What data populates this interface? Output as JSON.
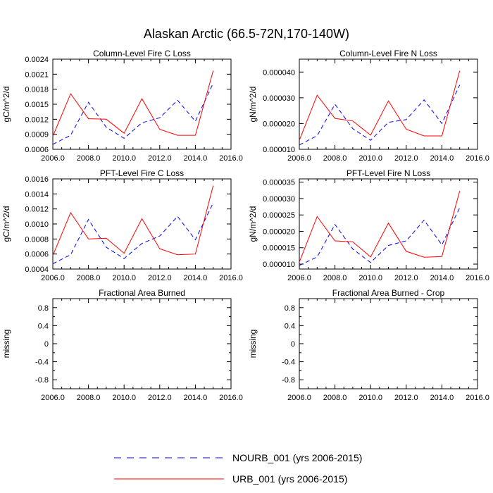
{
  "figure": {
    "title": "Alaskan Arctic (66.5-72N,170-140W)",
    "colors": {
      "nourb": "#0000ff",
      "urb": "#ff0000",
      "axis": "#000000"
    }
  },
  "legend": {
    "placement": "bottom-center",
    "items": [
      {
        "label": "NOURB_001 (yrs 2006-2015)",
        "style": "dashed",
        "color": "#0000ff"
      },
      {
        "label": "URB_001 (yrs 2006-2015)",
        "style": "solid",
        "color": "#ff0000"
      }
    ]
  },
  "chart_data": [
    {
      "type": "line",
      "title": "Column-Level Fire C Loss",
      "ylabel": "gC/m^2/d",
      "xlabel": "",
      "xlim": [
        2006,
        2016
      ],
      "ylim": [
        0.0006,
        0.0024
      ],
      "xticks": [
        2006,
        2008,
        2010,
        2012,
        2014,
        2016
      ],
      "xtick_labels": [
        "2006.0",
        "2008.0",
        "2010.0",
        "2012.0",
        "2014.0",
        "2016.0"
      ],
      "yticks": [
        0.0006,
        0.0009,
        0.0012,
        0.0015,
        0.0018,
        0.0021,
        0.0024
      ],
      "ytick_labels": [
        "0.0006",
        "0.0009",
        "0.0012",
        "0.0015",
        "0.0018",
        "0.0021",
        "0.0024"
      ],
      "x": [
        2006,
        2007,
        2008,
        2009,
        2010,
        2011,
        2012,
        2013,
        2014,
        2015
      ],
      "series": [
        {
          "name": "NOURB_001",
          "style": "dashed",
          "values": [
            0.0007,
            0.00088,
            0.00154,
            0.00104,
            0.00082,
            0.00113,
            0.00123,
            0.00158,
            0.00116,
            0.00192
          ]
        },
        {
          "name": "URB_001",
          "style": "solid",
          "values": [
            0.00086,
            0.00171,
            0.00121,
            0.0012,
            0.00092,
            0.00161,
            0.001,
            0.00088,
            0.00088,
            0.00217
          ]
        }
      ]
    },
    {
      "type": "line",
      "title": "Column-Level Fire N Loss",
      "ylabel": "gN/m^2/d",
      "xlabel": "",
      "xlim": [
        2006,
        2016
      ],
      "ylim": [
        1e-05,
        4.5e-05
      ],
      "xticks": [
        2006,
        2008,
        2010,
        2012,
        2014,
        2016
      ],
      "xtick_labels": [
        "2006.0",
        "2008.0",
        "2010.0",
        "2012.0",
        "2014.0",
        "2016.0"
      ],
      "yticks": [
        1e-05,
        2e-05,
        3e-05,
        4e-05
      ],
      "ytick_labels": [
        "0.000010",
        "0.000020",
        "0.000030",
        "0.000040"
      ],
      "x": [
        2006,
        2007,
        2008,
        2009,
        2010,
        2011,
        2012,
        2013,
        2014,
        2015
      ],
      "series": [
        {
          "name": "NOURB_001",
          "style": "dashed",
          "values": [
            1.17e-05,
            1.53e-05,
            2.75e-05,
            1.8e-05,
            1.35e-05,
            2.05e-05,
            2.15e-05,
            2.92e-05,
            2e-05,
            3.5e-05
          ]
        },
        {
          "name": "URB_001",
          "style": "solid",
          "values": [
            1.35e-05,
            3.1e-05,
            2.2e-05,
            2.1e-05,
            1.55e-05,
            2.88e-05,
            1.78e-05,
            1.52e-05,
            1.52e-05,
            4.05e-05
          ]
        }
      ]
    },
    {
      "type": "line",
      "title": "PFT-Level Fire C Loss",
      "ylabel": "gC/m^2/d",
      "xlabel": "",
      "xlim": [
        2006,
        2016
      ],
      "ylim": [
        0.0004,
        0.0016
      ],
      "xticks": [
        2006,
        2008,
        2010,
        2012,
        2014,
        2016
      ],
      "xtick_labels": [
        "2006.0",
        "2008.0",
        "2010.0",
        "2012.0",
        "2014.0",
        "2016.0"
      ],
      "yticks": [
        0.0004,
        0.0006,
        0.0008,
        0.001,
        0.0012,
        0.0014,
        0.0016
      ],
      "ytick_labels": [
        "0.0004",
        "0.0006",
        "0.0008",
        "0.0010",
        "0.0012",
        "0.0014",
        "0.0016"
      ],
      "x": [
        2006,
        2007,
        2008,
        2009,
        2010,
        2011,
        2012,
        2013,
        2014,
        2015
      ],
      "series": [
        {
          "name": "NOURB_001",
          "style": "dashed",
          "values": [
            0.00047,
            0.00059,
            0.00106,
            0.00069,
            0.00054,
            0.00074,
            0.00084,
            0.0011,
            0.00079,
            0.00128
          ]
        },
        {
          "name": "URB_001",
          "style": "solid",
          "values": [
            0.00058,
            0.00115,
            0.0008,
            0.00081,
            0.00061,
            0.00107,
            0.00067,
            0.00059,
            0.0006,
            0.00151
          ]
        }
      ]
    },
    {
      "type": "line",
      "title": "PFT-Level Fire N Loss",
      "ylabel": "gN/m^2/d",
      "xlabel": "",
      "xlim": [
        2006,
        2016
      ],
      "ylim": [
        8.5e-06,
        3.6e-05
      ],
      "xticks": [
        2006,
        2008,
        2010,
        2012,
        2014,
        2016
      ],
      "xtick_labels": [
        "2006.0",
        "2008.0",
        "2010.0",
        "2012.0",
        "2014.0",
        "2016.0"
      ],
      "yticks": [
        1e-05,
        1.5e-05,
        2e-05,
        2.5e-05,
        3e-05,
        3.5e-05
      ],
      "ytick_labels": [
        "0.000010",
        "0.000015",
        "0.000020",
        "0.000025",
        "0.000030",
        "0.000035"
      ],
      "x": [
        2006,
        2007,
        2008,
        2009,
        2010,
        2011,
        2012,
        2013,
        2014,
        2015
      ],
      "series": [
        {
          "name": "NOURB_001",
          "style": "dashed",
          "values": [
            9.6e-06,
            1.22e-05,
            2.21e-05,
            1.46e-05,
            1.05e-05,
            1.57e-05,
            1.71e-05,
            2.34e-05,
            1.59e-05,
            2.72e-05
          ]
        },
        {
          "name": "URB_001",
          "style": "solid",
          "values": [
            1.06e-05,
            2.45e-05,
            1.71e-05,
            1.68e-05,
            1.22e-05,
            2.25e-05,
            1.39e-05,
            1.21e-05,
            1.23e-05,
            3.23e-05
          ]
        }
      ]
    },
    {
      "type": "line",
      "title": "Fractional Area Burned",
      "ylabel": "missing",
      "xlabel": "",
      "xlim": [
        2006,
        2016
      ],
      "ylim": [
        -1,
        1
      ],
      "xticks": [
        2006,
        2008,
        2010,
        2012,
        2014,
        2016
      ],
      "xtick_labels": [
        "2006.0",
        "2008.0",
        "2010.0",
        "2012.0",
        "2014.0",
        "2016.0"
      ],
      "yticks": [
        -0.8,
        -0.4,
        0,
        0.4,
        0.8
      ],
      "ytick_labels": [
        "-0.8",
        "-0.4",
        "0",
        "0.4",
        "0.8"
      ],
      "minor_yticks": [
        -0.6,
        -0.2,
        0.2,
        0.6
      ],
      "x": [],
      "series": []
    },
    {
      "type": "line",
      "title": "Fractional Area Burned - Crop",
      "ylabel": "missing",
      "xlabel": "",
      "xlim": [
        2006,
        2016
      ],
      "ylim": [
        -1,
        1
      ],
      "xticks": [
        2006,
        2008,
        2010,
        2012,
        2014,
        2016
      ],
      "xtick_labels": [
        "2006.0",
        "2008.0",
        "2010.0",
        "2012.0",
        "2014.0",
        "2016.0"
      ],
      "yticks": [
        -0.8,
        -0.4,
        0,
        0.4,
        0.8
      ],
      "ytick_labels": [
        "-0.8",
        "-0.4",
        "0",
        "0.4",
        "0.8"
      ],
      "minor_yticks": [
        -0.6,
        -0.2,
        0.2,
        0.6
      ],
      "x": [],
      "series": []
    }
  ]
}
